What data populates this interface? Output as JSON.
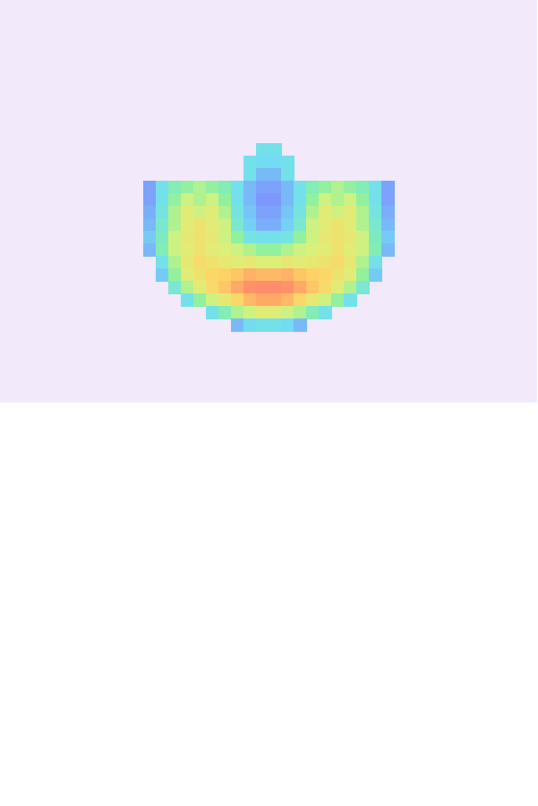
{
  "chart_data": {
    "type": "heatmap",
    "tick_labels": false,
    "xlim": [
      0,
      600
    ],
    "ylim": [
      0,
      450
    ],
    "x": [
      167,
      181,
      195,
      209,
      223,
      237,
      251,
      265,
      279,
      293,
      307,
      321,
      335,
      349,
      363,
      377,
      391,
      405,
      419,
      433
    ],
    "y": [
      167,
      181,
      195,
      209,
      223,
      237,
      251,
      265,
      279,
      293,
      307,
      321,
      335,
      349,
      363
    ],
    "colorbar_range": [
      0,
      1
    ],
    "cells": [
      [
        null,
        null,
        null,
        null,
        null,
        null,
        null,
        null,
        null,
        0.3,
        0.3,
        null,
        null,
        null,
        null,
        null,
        null,
        null,
        null,
        null
      ],
      [
        null,
        null,
        null,
        null,
        null,
        null,
        null,
        null,
        0.3,
        0.28,
        0.28,
        0.3,
        null,
        null,
        null,
        null,
        null,
        null,
        null,
        null
      ],
      [
        null,
        null,
        null,
        null,
        null,
        null,
        null,
        null,
        0.3,
        0.22,
        0.22,
        0.3,
        null,
        null,
        null,
        null,
        null,
        null,
        null,
        null
      ],
      [
        0.18,
        0.3,
        0.4,
        0.45,
        0.5,
        0.45,
        0.4,
        0.3,
        0.22,
        0.18,
        0.18,
        0.22,
        0.3,
        0.4,
        0.45,
        0.5,
        0.45,
        0.4,
        0.3,
        0.18
      ],
      [
        0.18,
        0.3,
        0.45,
        0.55,
        0.5,
        0.55,
        0.45,
        0.3,
        0.22,
        0.16,
        0.16,
        0.22,
        0.3,
        0.45,
        0.55,
        0.5,
        0.55,
        0.45,
        0.3,
        0.18
      ],
      [
        0.2,
        0.32,
        0.5,
        0.6,
        0.55,
        0.6,
        0.5,
        0.32,
        0.24,
        0.18,
        0.18,
        0.24,
        0.32,
        0.5,
        0.6,
        0.55,
        0.6,
        0.5,
        0.32,
        0.2
      ],
      [
        0.22,
        0.35,
        0.5,
        0.6,
        0.65,
        0.6,
        0.55,
        0.35,
        0.26,
        0.2,
        0.2,
        0.26,
        0.35,
        0.55,
        0.6,
        0.65,
        0.6,
        0.5,
        0.35,
        0.22
      ],
      [
        0.25,
        0.38,
        0.55,
        0.62,
        0.65,
        0.62,
        0.55,
        0.45,
        0.32,
        0.3,
        0.3,
        0.32,
        0.45,
        0.55,
        0.62,
        0.65,
        0.62,
        0.55,
        0.38,
        0.25
      ],
      [
        0.22,
        0.4,
        0.55,
        0.6,
        0.65,
        0.6,
        0.58,
        0.55,
        0.5,
        0.45,
        0.45,
        0.5,
        0.55,
        0.58,
        0.6,
        0.65,
        0.6,
        0.55,
        0.4,
        0.22
      ],
      [
        null,
        0.3,
        0.5,
        0.62,
        0.68,
        0.65,
        0.62,
        0.6,
        0.62,
        0.58,
        0.58,
        0.62,
        0.6,
        0.62,
        0.65,
        0.68,
        0.62,
        0.5,
        0.3,
        null
      ],
      [
        null,
        0.25,
        0.45,
        0.6,
        0.65,
        0.7,
        0.72,
        0.75,
        0.8,
        0.78,
        0.78,
        0.8,
        0.75,
        0.72,
        0.7,
        0.65,
        0.6,
        0.45,
        0.25,
        null
      ],
      [
        null,
        null,
        0.35,
        0.5,
        0.6,
        0.68,
        0.75,
        0.82,
        0.88,
        0.9,
        0.9,
        0.88,
        0.82,
        0.75,
        0.68,
        0.6,
        0.5,
        0.35,
        null,
        null
      ],
      [
        null,
        null,
        null,
        0.3,
        0.45,
        0.55,
        0.62,
        0.7,
        0.78,
        0.82,
        0.82,
        0.78,
        0.7,
        0.62,
        0.55,
        0.45,
        0.3,
        null,
        null,
        null
      ],
      [
        null,
        null,
        null,
        null,
        null,
        0.3,
        0.4,
        0.5,
        0.55,
        0.6,
        0.6,
        0.55,
        0.5,
        0.4,
        0.3,
        null,
        null,
        null,
        null,
        null
      ],
      [
        null,
        null,
        null,
        null,
        null,
        null,
        null,
        0.22,
        0.28,
        0.3,
        0.3,
        0.28,
        0.22,
        null,
        null,
        null,
        null,
        null,
        null,
        null
      ]
    ]
  }
}
